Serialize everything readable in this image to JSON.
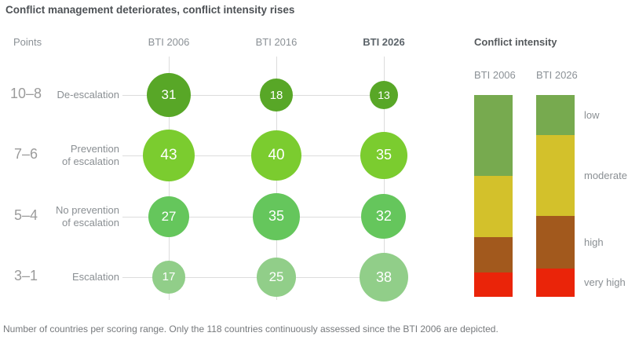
{
  "title": "Conflict management deteriorates, conflict intensity rises",
  "footnote": "Number of countries per scoring range. Only the 118 countries continuously assessed since the BTI 2006 are depicted.",
  "bubble_chart": {
    "points_header": "Points",
    "columns": [
      {
        "label": "BTI 2006",
        "bold": false
      },
      {
        "label": "BTI 2016",
        "bold": false
      },
      {
        "label": "BTI 2026",
        "bold": true
      }
    ],
    "rows": [
      {
        "points": "10–8",
        "label_lines": [
          "De-escalation"
        ],
        "color": "#58a727",
        "values": [
          31,
          18,
          13
        ]
      },
      {
        "points": "7–6",
        "label_lines": [
          "Prevention",
          "of escalation"
        ],
        "color": "#7bcc2f",
        "values": [
          43,
          40,
          35
        ]
      },
      {
        "points": "5–4",
        "label_lines": [
          "No prevention",
          "of escalation"
        ],
        "color": "#65c65c",
        "values": [
          27,
          35,
          32
        ]
      },
      {
        "points": "3–1",
        "label_lines": [
          "Escalation"
        ],
        "color": "#91ce89",
        "values": [
          17,
          25,
          38
        ]
      }
    ]
  },
  "intensity_chart": {
    "title": "Conflict intensity",
    "bars": [
      {
        "label": "BTI 2006",
        "segments": [
          40,
          30.5,
          17.5,
          12
        ]
      },
      {
        "label": "BTI 2026",
        "segments": [
          20,
          40,
          26,
          14
        ]
      }
    ],
    "levels": [
      {
        "label": "low",
        "color": "#77aa4f"
      },
      {
        "label": "moderate",
        "color": "#d3c12b"
      },
      {
        "label": "high",
        "color": "#a2591d"
      },
      {
        "label": "very high",
        "color": "#ea2409"
      }
    ]
  },
  "chart_data": [
    {
      "type": "scatter",
      "subtype": "bubble-matrix",
      "title": "Conflict management deteriorates, conflict intensity rises",
      "xlabel": "",
      "ylabel": "Points",
      "x_categories": [
        "BTI 2006",
        "BTI 2016",
        "BTI 2026"
      ],
      "y_categories": [
        "10–8 De-escalation",
        "7–6 Prevention of escalation",
        "5–4 No prevention of escalation",
        "3–1 Escalation"
      ],
      "series": [
        {
          "name": "De-escalation (10–8 points)",
          "values": [
            31,
            18,
            13
          ]
        },
        {
          "name": "Prevention of escalation (7–6 points)",
          "values": [
            43,
            40,
            35
          ]
        },
        {
          "name": "No prevention of escalation (5–4 points)",
          "values": [
            27,
            35,
            32
          ]
        },
        {
          "name": "Escalation (3–1 points)",
          "values": [
            17,
            25,
            38
          ]
        }
      ],
      "value_meaning": "number of countries per scoring range (118 countries total)",
      "size_encoding": "bubble area proportional to value",
      "grid": true,
      "legend_position": "none"
    },
    {
      "type": "bar",
      "subtype": "stacked-100-percent",
      "title": "Conflict intensity",
      "categories": [
        "BTI 2006",
        "BTI 2026"
      ],
      "series": [
        {
          "name": "low",
          "values": [
            40,
            20
          ]
        },
        {
          "name": "moderate",
          "values": [
            30.5,
            40
          ]
        },
        {
          "name": "high",
          "values": [
            17.5,
            26
          ]
        },
        {
          "name": "very high",
          "values": [
            12,
            14
          ]
        }
      ],
      "unit": "percent of countries (estimated from bar segment heights)",
      "ylim": [
        0,
        100
      ],
      "grid": false,
      "legend_position": "right"
    }
  ]
}
